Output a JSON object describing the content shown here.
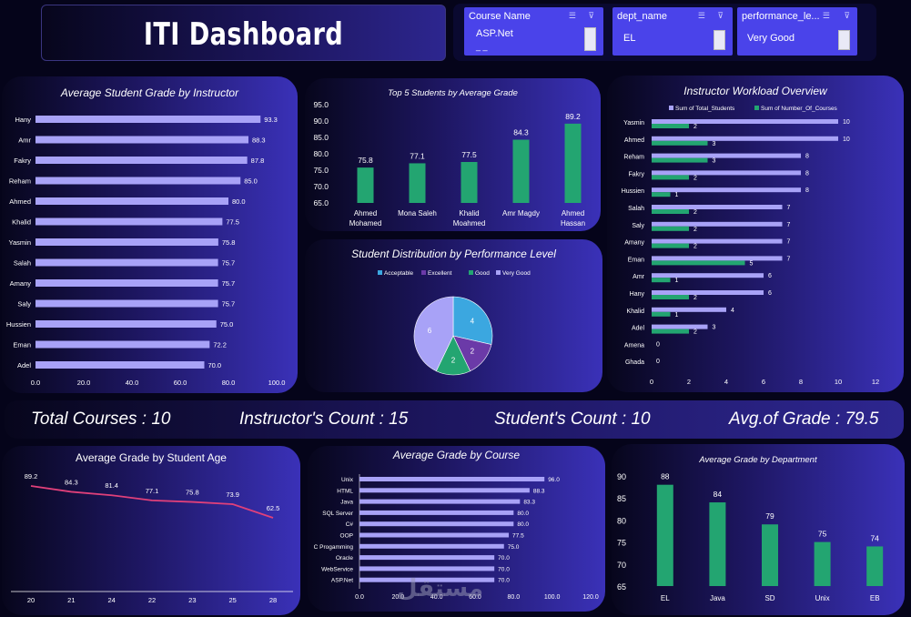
{
  "header": {
    "title": "ITI Dashboard"
  },
  "slicers": [
    {
      "header": "Course Name",
      "value": "ASP.Net",
      "more": "_ _"
    },
    {
      "header": "dept_name",
      "value": "EL"
    },
    {
      "header": "performance_le...",
      "value": "Very Good"
    }
  ],
  "kpis": {
    "courses": "Total Courses : 10",
    "instructors": "Instructor's Count : 15",
    "students": "Student's Count : 10",
    "grade": "Avg.of Grade : 79.5"
  },
  "watermark": "مستقل",
  "chart_data": [
    {
      "id": "instructor_grade",
      "type": "bar",
      "orientation": "horizontal",
      "title": "Average Student Grade by Instructor",
      "categories": [
        "Hany",
        "Amr",
        "Fakry",
        "Reham",
        "Ahmed",
        "Khalid",
        "Yasmin",
        "Salah",
        "Amany",
        "Saly",
        "Hussien",
        "Eman",
        "Adel"
      ],
      "values": [
        93.3,
        88.3,
        87.8,
        85.0,
        80.0,
        77.5,
        75.8,
        75.7,
        75.7,
        75.7,
        75.0,
        72.2,
        70.0
      ],
      "labels": [
        "93.3",
        "88.3",
        "87.8",
        "85.0",
        "80.0",
        "77.5",
        "75.8",
        "75.7",
        "75.7",
        "75.7",
        "75.0",
        "72.2",
        "70.0"
      ],
      "xlim": [
        0,
        100
      ],
      "xticks": [
        "0.0",
        "20.0",
        "40.0",
        "60.0",
        "80.0",
        "100.0"
      ],
      "color": "#a8a2f7"
    },
    {
      "id": "top5_students",
      "type": "bar",
      "title": "Top 5 Students by Average Grade",
      "categories": [
        "Ahmed Mohamed",
        "Mona Saleh",
        "Khalid Moahmed",
        "Amr Magdy",
        "Ahmed Hassan"
      ],
      "values": [
        75.8,
        77.1,
        77.5,
        84.3,
        89.2
      ],
      "labels": [
        "75.8",
        "77.1",
        "77.5",
        "84.3",
        "89.2"
      ],
      "ylim": [
        65,
        95
      ],
      "yticks": [
        "65.0",
        "70.0",
        "75.0",
        "80.0",
        "85.0",
        "90.0",
        "95.0"
      ],
      "color": "#23a571"
    },
    {
      "id": "performance_distribution",
      "type": "pie",
      "title": "Student Distribution by Performance Level",
      "categories": [
        "Acceptable",
        "Excellent",
        "Good",
        "Very Good"
      ],
      "values": [
        4,
        2,
        2,
        6
      ],
      "colors": [
        "#3ba7e0",
        "#6b3aa8",
        "#23a571",
        "#a8a2f7"
      ],
      "legend": "top"
    },
    {
      "id": "instructor_workload",
      "type": "bar",
      "orientation": "horizontal",
      "title": "Instructor Workload Overview",
      "categories": [
        "Yasmin",
        "Ahmed",
        "Reham",
        "Fakry",
        "Hussien",
        "Salah",
        "Saly",
        "Amany",
        "Eman",
        "Amr",
        "Hany",
        "Khalid",
        "Adel",
        "Amena",
        "Ghada"
      ],
      "series": [
        {
          "name": "Sum of Total_Students",
          "values": [
            10,
            10,
            8,
            8,
            8,
            7,
            7,
            7,
            7,
            6,
            6,
            4,
            3,
            0,
            0
          ],
          "color": "#a8a2f7"
        },
        {
          "name": "Sum of Number_Of_Courses",
          "values": [
            2,
            3,
            3,
            2,
            1,
            2,
            2,
            2,
            5,
            1,
            2,
            1,
            2,
            null,
            null
          ],
          "color": "#23a571"
        }
      ],
      "xlim": [
        0,
        12
      ],
      "xticks": [
        "0",
        "2",
        "4",
        "6",
        "8",
        "10",
        "12"
      ],
      "legend": "top"
    },
    {
      "id": "grade_by_age",
      "type": "line",
      "title": "Average Grade by Student Age",
      "categories": [
        "20",
        "21",
        "24",
        "22",
        "23",
        "25",
        "28"
      ],
      "values": [
        89.2,
        84.3,
        81.4,
        77.1,
        75.8,
        73.9,
        62.5
      ],
      "labels": [
        "89.2",
        "84.3",
        "81.4",
        "77.1",
        "75.8",
        "73.9",
        "62.5"
      ],
      "color": "#e0407a"
    },
    {
      "id": "grade_by_course",
      "type": "bar",
      "orientation": "horizontal",
      "title": "Average Grade by Course",
      "categories": [
        "Unix",
        "HTML",
        "Java",
        "SQL Server",
        "C#",
        "OOP",
        "C Progamming",
        "Oracle",
        "WebService",
        "ASP.Net"
      ],
      "values": [
        96.0,
        88.3,
        83.3,
        80.0,
        80.0,
        77.5,
        75.0,
        70.0,
        70.0,
        70.0
      ],
      "labels": [
        "96.0",
        "88.3",
        "83.3",
        "80.0",
        "80.0",
        "77.5",
        "75.0",
        "70.0",
        "70.0",
        "70.0"
      ],
      "xlim": [
        0,
        120
      ],
      "xticks": [
        "0.0",
        "20.0",
        "40.0",
        "60.0",
        "80.0",
        "100.0",
        "120.0"
      ],
      "color": "#a8a2f7"
    },
    {
      "id": "grade_by_department",
      "type": "bar",
      "title": "Average Grade by Department",
      "categories": [
        "EL",
        "Java",
        "SD",
        "Unix",
        "EB"
      ],
      "values": [
        88,
        84,
        79,
        75,
        74
      ],
      "labels": [
        "88",
        "84",
        "79",
        "75",
        "74"
      ],
      "ylim": [
        65,
        90
      ],
      "yticks": [
        "65",
        "70",
        "75",
        "80",
        "85",
        "90"
      ],
      "color": "#23a571"
    }
  ]
}
